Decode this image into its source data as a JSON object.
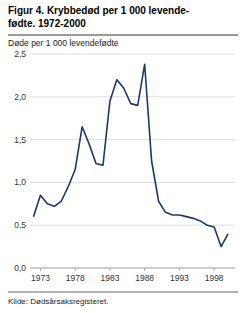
{
  "chart_data": {
    "type": "line",
    "title": [
      "Figur 4. Krybbedød per 1 000 levende-",
      "fødte. 1972-2000"
    ],
    "ylabel": "Døde per 1 000 levendefødte",
    "source": "Kilde: Dødsårsaksregisteret.",
    "color": "#1a3a6e",
    "grid": true,
    "xlim": [
      1971.5,
      2001.0
    ],
    "xticks": [
      1973,
      1978,
      1983,
      1988,
      1993,
      1998
    ],
    "ylim": [
      0.0,
      2.5
    ],
    "yticks": [
      {
        "value": 0.0,
        "label": "0,0"
      },
      {
        "value": 0.5,
        "label": "0,5"
      },
      {
        "value": 1.0,
        "label": "1,0"
      },
      {
        "value": 1.5,
        "label": "1,5"
      },
      {
        "value": 2.0,
        "label": "2,0"
      },
      {
        "value": 2.5,
        "label": "2,5"
      }
    ],
    "x": [
      1972,
      1973,
      1974,
      1975,
      1976,
      1977,
      1978,
      1979,
      1980,
      1981,
      1982,
      1983,
      1984,
      1985,
      1986,
      1987,
      1988,
      1989,
      1990,
      1991,
      1992,
      1993,
      1994,
      1995,
      1996,
      1997,
      1998,
      1999,
      2000
    ],
    "values": [
      0.6,
      0.85,
      0.75,
      0.72,
      0.78,
      0.95,
      1.15,
      1.65,
      1.45,
      1.22,
      1.2,
      1.95,
      2.2,
      2.1,
      1.92,
      1.9,
      2.38,
      1.25,
      0.78,
      0.65,
      0.62,
      0.62,
      0.6,
      0.58,
      0.55,
      0.5,
      0.48,
      0.25,
      0.4
    ]
  }
}
